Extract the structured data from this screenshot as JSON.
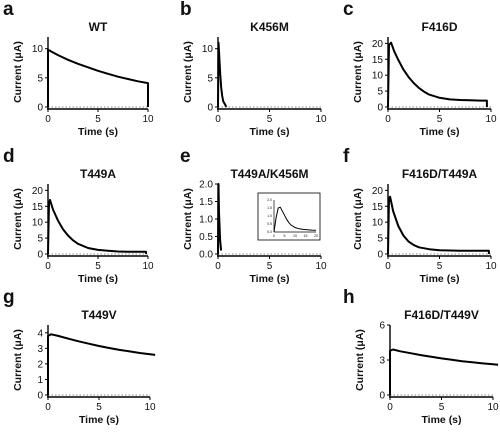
{
  "chart_data": [
    {
      "type": "line",
      "panel_letter": "a",
      "title": "WT",
      "xlabel": "Time (s)",
      "ylabel": "Current (μA)",
      "xlim": [
        0,
        10
      ],
      "ylim": [
        0,
        12
      ],
      "xticks": [
        0,
        5,
        10
      ],
      "yticks": [
        0,
        5,
        10
      ],
      "series": [
        {
          "x": [
            0,
            0,
            1,
            2,
            3,
            4,
            5,
            6,
            7,
            8,
            9,
            10,
            10
          ],
          "y": [
            0,
            9.8,
            8.9,
            8.1,
            7.4,
            6.8,
            6.2,
            5.7,
            5.2,
            4.8,
            4.4,
            4.1,
            0
          ]
        }
      ]
    },
    {
      "type": "line",
      "panel_letter": "b",
      "title": "K456M",
      "xlabel": "Time (s)",
      "ylabel": "Current (μA)",
      "xlim": [
        0,
        10
      ],
      "ylim": [
        0,
        12
      ],
      "xticks": [
        0,
        5,
        10
      ],
      "yticks": [
        0,
        5,
        10
      ],
      "series": [
        {
          "x": [
            0,
            0.05,
            0.1,
            0.2,
            0.3,
            0.4,
            0.5,
            0.7,
            0.8
          ],
          "y": [
            0,
            11,
            9.5,
            6,
            3.5,
            2,
            1,
            0.4,
            0
          ]
        }
      ]
    },
    {
      "type": "line",
      "panel_letter": "c",
      "title": "F416D",
      "xlabel": "Time (s)",
      "ylabel": "Current (μA)",
      "xlim": [
        0,
        10
      ],
      "ylim": [
        0,
        22
      ],
      "xticks": [
        0,
        5,
        10
      ],
      "yticks": [
        0,
        5,
        10,
        15,
        20
      ],
      "series": [
        {
          "x": [
            0,
            0.1,
            0.3,
            0.6,
            1,
            1.5,
            2,
            2.5,
            3,
            3.5,
            4,
            5,
            6,
            7,
            8,
            9,
            9.6,
            9.6
          ],
          "y": [
            0,
            19.5,
            20.2,
            17.5,
            14.8,
            11.8,
            9.4,
            7.5,
            6,
            4.8,
            3.9,
            2.9,
            2.4,
            2.2,
            2.1,
            2,
            2,
            0
          ]
        }
      ]
    },
    {
      "type": "line",
      "panel_letter": "d",
      "title": "T449A",
      "xlabel": "Time (s)",
      "ylabel": "Current (μA)",
      "xlim": [
        0,
        10
      ],
      "ylim": [
        0,
        22
      ],
      "xticks": [
        0,
        5,
        10
      ],
      "yticks": [
        0,
        5,
        10,
        15,
        20
      ],
      "series": [
        {
          "x": [
            0,
            0.1,
            0.2,
            0.5,
            1,
            1.5,
            2,
            2.5,
            3,
            4,
            5,
            6,
            7,
            8,
            9,
            9.8,
            9.8
          ],
          "y": [
            0,
            16,
            17,
            14,
            10.5,
            7.8,
            5.8,
            4.3,
            3.2,
            1.9,
            1.3,
            1,
            0.8,
            0.7,
            0.7,
            0.7,
            0
          ]
        }
      ]
    },
    {
      "type": "line",
      "panel_letter": "e",
      "title": "T449A/K456M",
      "xlabel": "Time (s)",
      "ylabel": "Current (μA)",
      "xlim": [
        0,
        10
      ],
      "ylim": [
        0,
        2
      ],
      "xticks": [
        0,
        5,
        10
      ],
      "yticks": [
        0.0,
        0.5,
        1.0,
        1.5,
        2.0
      ],
      "series": [
        {
          "x": [
            0,
            0.05,
            0.1,
            0.2,
            0.3
          ],
          "y": [
            0,
            2.0,
            1.2,
            0.4,
            0.1
          ]
        }
      ],
      "inset": {
        "xlim": [
          0,
          20
        ],
        "ylim": [
          0,
          2
        ],
        "xticks": [
          0,
          5,
          10,
          15,
          20
        ],
        "yticks": [
          0.0,
          0.5,
          1.0,
          1.5,
          2.0
        ],
        "series": [
          {
            "x": [
              0,
              1,
              2,
              3,
              4,
              5,
              6,
              7,
              8,
              10,
              12,
              14,
              16,
              18,
              20
            ],
            "y": [
              0,
              0.9,
              1.5,
              1.55,
              1.3,
              1.05,
              0.8,
              0.6,
              0.45,
              0.28,
              0.2,
              0.16,
              0.14,
              0.12,
              0.11
            ]
          }
        ]
      }
    },
    {
      "type": "line",
      "panel_letter": "f",
      "title": "F416D/T449A",
      "xlabel": "Time (s)",
      "ylabel": "Current (μA)",
      "xlim": [
        0,
        10
      ],
      "ylim": [
        0,
        22
      ],
      "xticks": [
        0,
        5,
        10
      ],
      "yticks": [
        0,
        5,
        10,
        15,
        20
      ],
      "series": [
        {
          "x": [
            0,
            0.1,
            0.2,
            0.5,
            1,
            1.5,
            2,
            2.5,
            3,
            4,
            5,
            6,
            7,
            8,
            9,
            9.8,
            9.8
          ],
          "y": [
            0,
            17.5,
            18,
            13.5,
            8.8,
            5.8,
            3.9,
            2.8,
            2.1,
            1.5,
            1.2,
            1.1,
            1,
            1,
            1,
            1,
            0
          ]
        }
      ]
    },
    {
      "type": "line",
      "panel_letter": "g",
      "title": "T449V",
      "xlabel": "Time (s)",
      "ylabel": "Current (μA)",
      "xlim": [
        0,
        10
      ],
      "ylim": [
        0,
        4.5
      ],
      "xticks": [
        0,
        5,
        10
      ],
      "yticks": [
        0,
        1,
        2,
        3,
        4
      ],
      "series": [
        {
          "x": [
            0,
            0,
            0.3,
            1,
            2,
            3,
            4,
            5,
            6,
            7,
            8,
            9,
            10,
            10.5
          ],
          "y": [
            0,
            3.8,
            3.9,
            3.8,
            3.62,
            3.45,
            3.3,
            3.15,
            3.02,
            2.9,
            2.8,
            2.7,
            2.62,
            2.58
          ]
        }
      ]
    },
    {
      "type": "line",
      "panel_letter": "h",
      "title": "F416D/T449V",
      "xlabel": "Time (s)",
      "ylabel": "Current (μA)",
      "xlim": [
        0,
        10
      ],
      "ylim": [
        0,
        6
      ],
      "xticks": [
        0,
        5,
        10
      ],
      "yticks": [
        0,
        3,
        6
      ],
      "series": [
        {
          "x": [
            0,
            0,
            0.3,
            1,
            2,
            3,
            4,
            5,
            6,
            7,
            8,
            9,
            10,
            10.5
          ],
          "y": [
            0,
            3.8,
            3.9,
            3.75,
            3.58,
            3.42,
            3.28,
            3.14,
            3.02,
            2.9,
            2.8,
            2.71,
            2.63,
            2.6
          ]
        }
      ]
    }
  ]
}
